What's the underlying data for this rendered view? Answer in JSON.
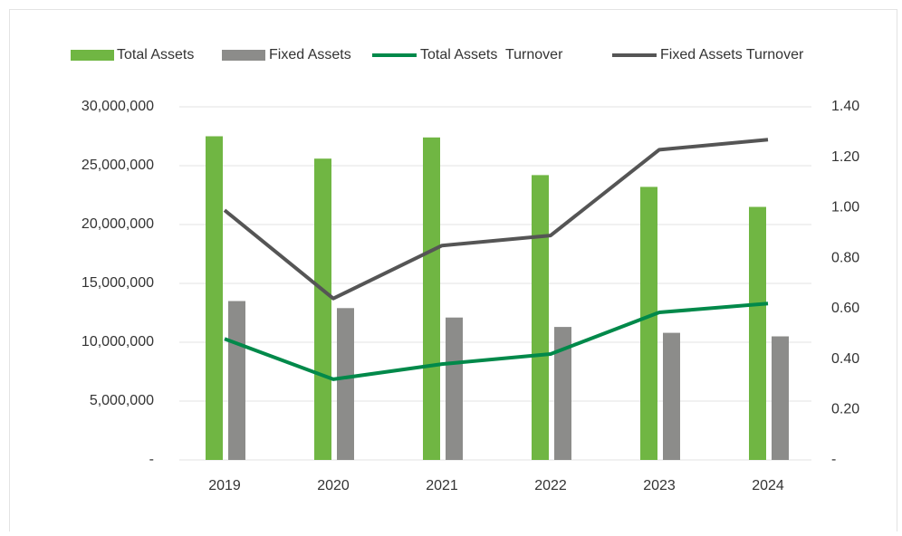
{
  "chart_data": {
    "type": "combo",
    "categories": [
      "2019",
      "2020",
      "2021",
      "2022",
      "2023",
      "2024"
    ],
    "series": [
      {
        "name": "Total Assets",
        "type": "bar",
        "color": "#70b643",
        "values": [
          27500000,
          25600000,
          27400000,
          24200000,
          23200000,
          21500000
        ]
      },
      {
        "name": "Fixed Assets",
        "type": "bar",
        "color": "#8c8c8a",
        "values": [
          13500000,
          12900000,
          12100000,
          11300000,
          10800000,
          10500000
        ]
      },
      {
        "name": "Total Assets  Turnover",
        "type": "line",
        "axis": "y2",
        "color": "#00894a",
        "values": [
          0.48,
          0.32,
          0.38,
          0.42,
          0.585,
          0.62
        ]
      },
      {
        "name": "Fixed Assets Turnover",
        "type": "line",
        "axis": "y2",
        "color": "#555555",
        "values": [
          0.99,
          0.64,
          0.85,
          0.89,
          1.23,
          1.27
        ]
      }
    ],
    "ylim": [
      0,
      30000000
    ],
    "yticks": [
      {
        "value": 0,
        "label": "-"
      },
      {
        "value": 5000000,
        "label": "5,000,000"
      },
      {
        "value": 10000000,
        "label": "10,000,000"
      },
      {
        "value": 15000000,
        "label": "15,000,000"
      },
      {
        "value": 20000000,
        "label": "20,000,000"
      },
      {
        "value": 25000000,
        "label": "25,000,000"
      },
      {
        "value": 30000000,
        "label": "30,000,000"
      }
    ],
    "y2lim": [
      0,
      1.4
    ],
    "y2ticks": [
      {
        "value": 0,
        "label": "-"
      },
      {
        "value": 0.2,
        "label": "0.20"
      },
      {
        "value": 0.4,
        "label": "0.40"
      },
      {
        "value": 0.6,
        "label": "0.60"
      },
      {
        "value": 0.8,
        "label": "0.80"
      },
      {
        "value": 1.0,
        "label": "1.00"
      },
      {
        "value": 1.2,
        "label": "1.20"
      },
      {
        "value": 1.4,
        "label": "1.40"
      }
    ],
    "grid": true,
    "legend": "top"
  }
}
